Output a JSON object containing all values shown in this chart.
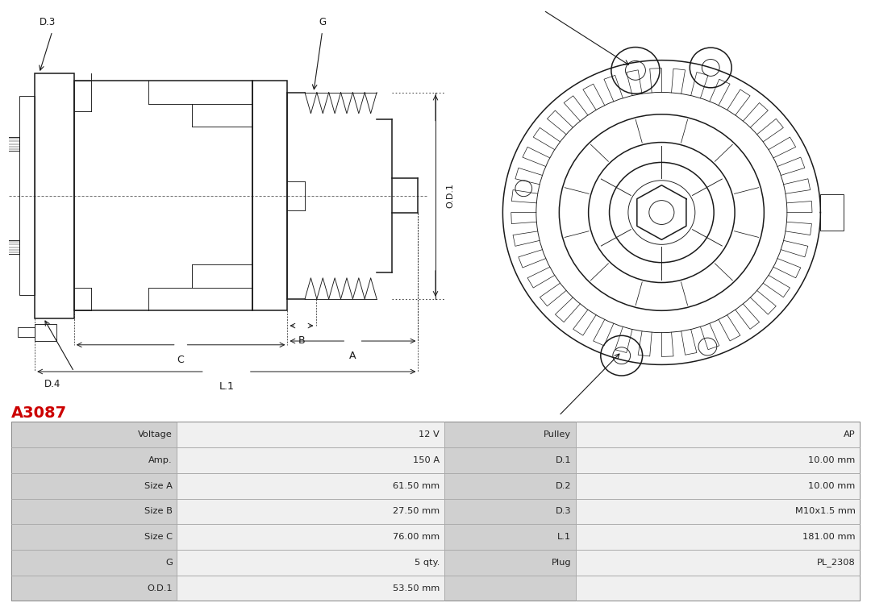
{
  "title": "A3087",
  "title_color": "#cc0000",
  "title_fontsize": 14,
  "bg_color": "#ffffff",
  "table_header_bg": "#d0d0d0",
  "table_val_bg": "#f0f0f0",
  "table_data": [
    [
      "Voltage",
      "12 V",
      "Pulley",
      "AP"
    ],
    [
      "Amp.",
      "150 A",
      "D.1",
      "10.00 mm"
    ],
    [
      "Size A",
      "61.50 mm",
      "D.2",
      "10.00 mm"
    ],
    [
      "Size B",
      "27.50 mm",
      "D.3",
      "M10x1.5 mm"
    ],
    [
      "Size C",
      "76.00 mm",
      "L.1",
      "181.00 mm"
    ],
    [
      "G",
      "5 qty.",
      "Plug",
      "PL_2308"
    ],
    [
      "O.D.1",
      "53.50 mm",
      "",
      ""
    ]
  ],
  "line_color": "#1a1a1a",
  "font_size_label": 8.5,
  "font_size_dim": 8
}
